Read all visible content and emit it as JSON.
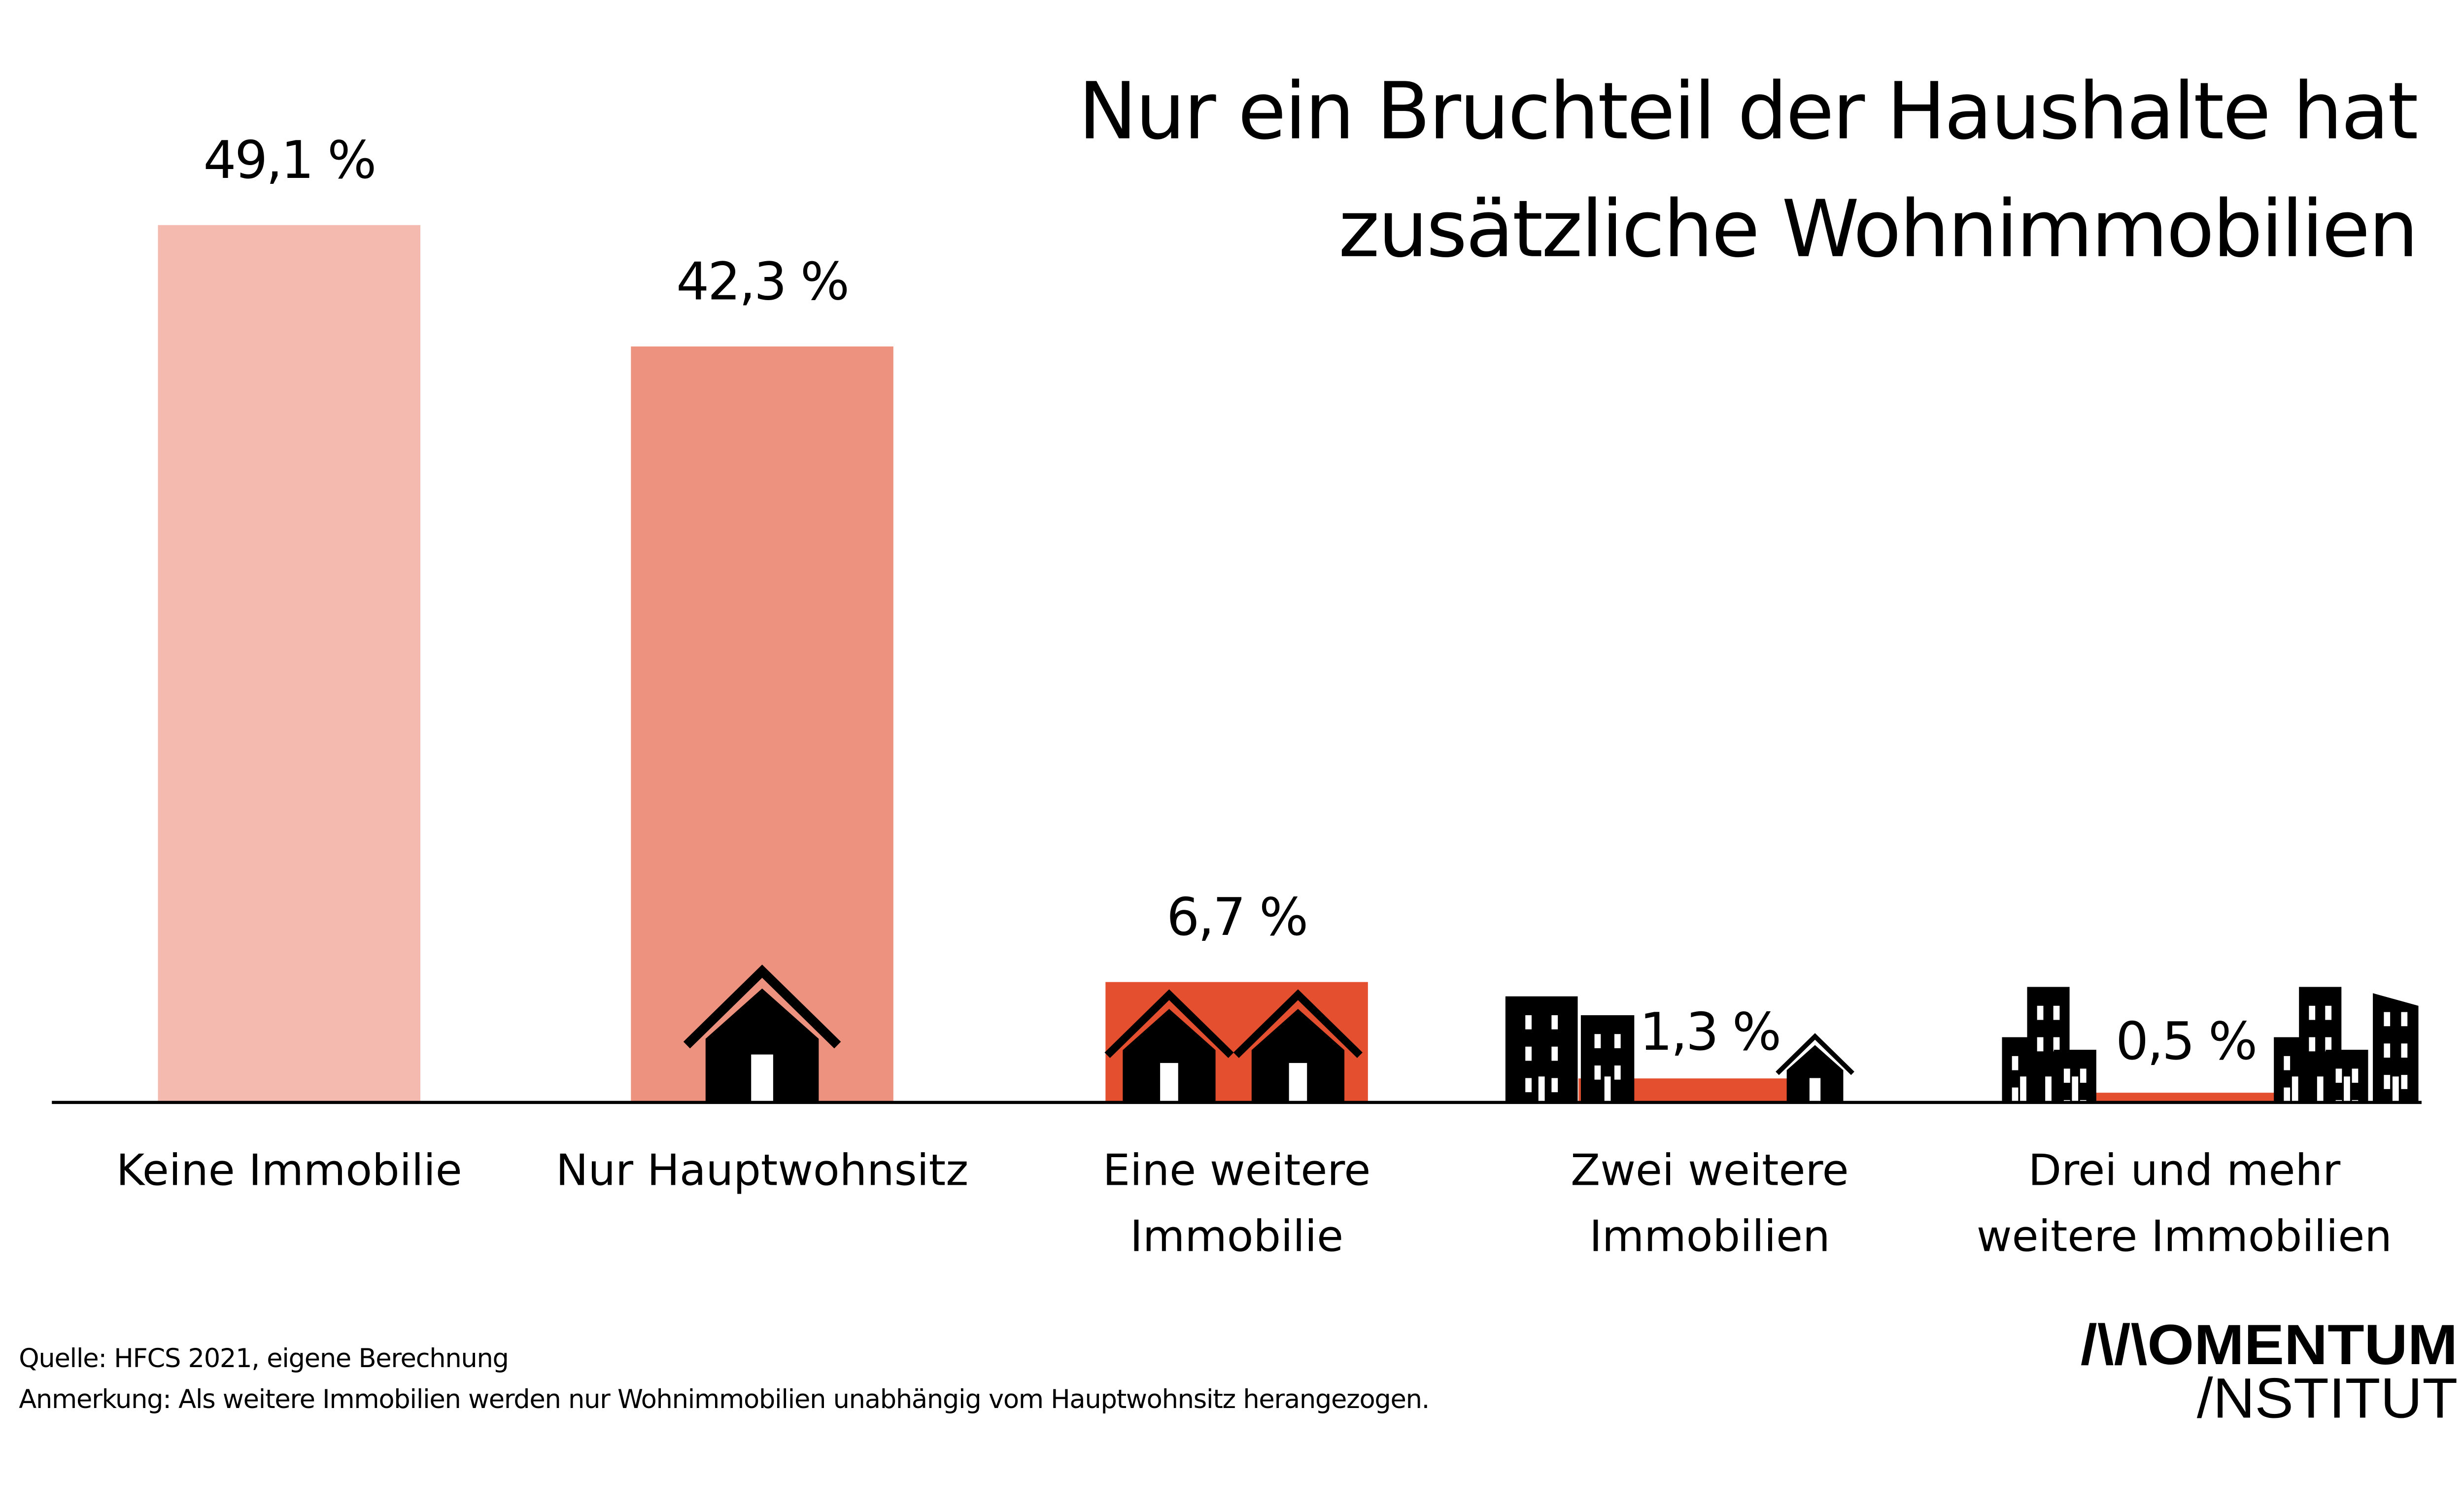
{
  "chart_data": {
    "type": "bar",
    "title": [
      "Nur ein Bruchteil der Haushalte hat",
      "zusätzliche Wohnimmobilien"
    ],
    "categories": [
      [
        "Keine Immobilie"
      ],
      [
        "Nur Hauptwohnsitz"
      ],
      [
        "Eine weitere",
        "Immobilie"
      ],
      [
        "Zwei weitere",
        "Immobilien"
      ],
      [
        "Drei und mehr",
        "weitere Immobilien"
      ]
    ],
    "values": [
      49.1,
      42.3,
      6.7,
      1.3,
      0.5
    ],
    "value_labels": [
      "49,1 %",
      "42,3 %",
      "6,7 %",
      "1,3 %",
      "0,5 %"
    ],
    "colors": [
      "#f4bab0",
      "#ed927e",
      "#e34f2f",
      "#e34f2f",
      "#e34f2f"
    ],
    "icons": [
      "none",
      "house-icon",
      "two-houses-icon",
      "buildings-and-house-icon",
      "many-buildings-icon"
    ],
    "ylim": [
      0,
      50
    ],
    "grid": false,
    "xlabel": "",
    "ylabel": ""
  },
  "footer": {
    "source": "Quelle: HFCS 2021, eigene Berechnung",
    "note": "Anmerkung:  Als weitere Immobilien werden nur Wohnimmobilien unabhängig vom Hauptwohnsitz herangezogen."
  },
  "logo": {
    "line1": "/\\/\\OMENTUM",
    "line2": "/NSTITUT"
  }
}
